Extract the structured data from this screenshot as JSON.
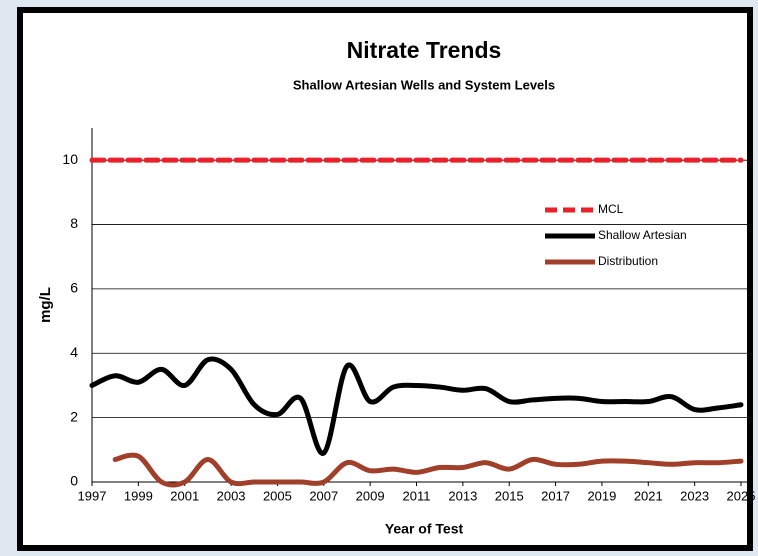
{
  "chart_data": {
    "type": "line",
    "title": "Nitrate Trends",
    "subtitle": "Shallow Artesian Wells and System Levels",
    "ylabel": "mg/L",
    "xlabel": "Year of Test",
    "x": [
      1997,
      1998,
      1999,
      2000,
      2001,
      2002,
      2003,
      2004,
      2005,
      2006,
      2007,
      2008,
      2009,
      2010,
      2011,
      2012,
      2013,
      2014,
      2015,
      2016,
      2017,
      2018,
      2019,
      2020,
      2021,
      2022,
      2023,
      2024,
      2025
    ],
    "series": [
      {
        "name": "MCL",
        "color": "#e8212b",
        "dash": true,
        "values": [
          10,
          10,
          10,
          10,
          10,
          10,
          10,
          10,
          10,
          10,
          10,
          10,
          10,
          10,
          10,
          10,
          10,
          10,
          10,
          10,
          10,
          10,
          10,
          10,
          10,
          10,
          10,
          10,
          10
        ]
      },
      {
        "name": "Shallow Artesian",
        "color": "#000000",
        "values": [
          3.0,
          3.3,
          3.1,
          3.5,
          3.0,
          3.8,
          3.5,
          2.4,
          2.1,
          2.6,
          0.9,
          3.6,
          2.5,
          2.95,
          3.0,
          2.95,
          2.85,
          2.9,
          2.5,
          2.55,
          2.6,
          2.6,
          2.5,
          2.5,
          2.5,
          2.65,
          2.25,
          2.3,
          2.4
        ]
      },
      {
        "name": "Distribution",
        "color": "#a0402a",
        "values": [
          null,
          0.7,
          0.8,
          0.0,
          0.0,
          0.7,
          0.0,
          0.0,
          0.0,
          0.0,
          0.0,
          0.6,
          0.35,
          0.4,
          0.3,
          0.45,
          0.45,
          0.6,
          0.4,
          0.7,
          0.55,
          0.55,
          0.65,
          0.65,
          0.6,
          0.55,
          0.6,
          0.6,
          0.65
        ]
      }
    ],
    "xlim": [
      1997,
      2025
    ],
    "xticks": [
      1997,
      1999,
      2001,
      2003,
      2005,
      2007,
      2009,
      2011,
      2013,
      2015,
      2017,
      2019,
      2021,
      2023,
      2025
    ],
    "ylim": [
      0,
      11
    ],
    "yticks": [
      0,
      2,
      4,
      6,
      8,
      10
    ],
    "grid": true,
    "legend": "right"
  }
}
